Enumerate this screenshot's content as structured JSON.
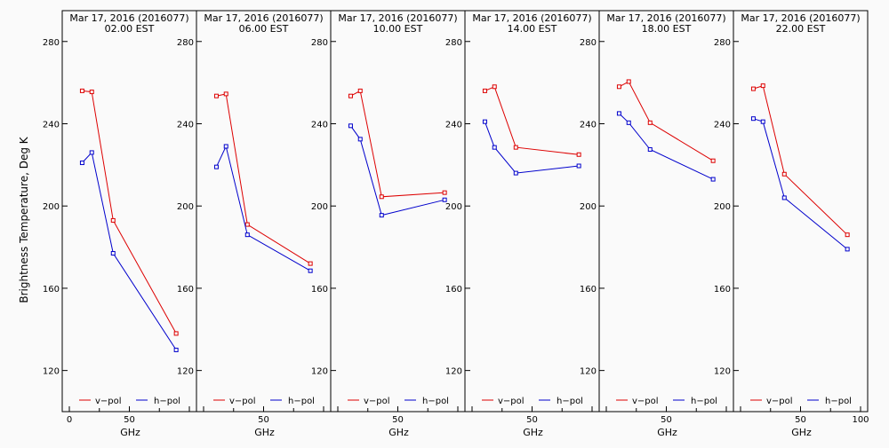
{
  "chart_data": {
    "type": "line",
    "ylabel": "Brightness Temperature, Deg K",
    "xlabel": "GHz",
    "xlim": [
      0,
      100
    ],
    "ylim": [
      100,
      295
    ],
    "y_ticks": [
      120,
      160,
      200,
      240,
      280
    ],
    "x_tick_labels": [
      "0",
      "50",
      "100"
    ],
    "x_tick_labels_small": [
      "25",
      "75"
    ],
    "colors": {
      "v-pol": "#dd0000",
      "h-pol": "#0000cc"
    },
    "legend_labels": [
      "v−pol",
      "h−pol"
    ],
    "grid": false,
    "panels": [
      {
        "title_line1": "Mar 17, 2016 (2016077)",
        "title_line2": "02.00 EST",
        "series": [
          {
            "name": "v−pol",
            "x": [
              10.7,
              18.7,
              36.5,
              89.0
            ],
            "y": [
              256,
              255.5,
              193,
              138
            ]
          },
          {
            "name": "h−pol",
            "x": [
              10.7,
              18.7,
              36.5,
              89.0
            ],
            "y": [
              221,
              226,
              177,
              130
            ]
          }
        ]
      },
      {
        "title_line1": "Mar 17, 2016 (2016077)",
        "title_line2": "06.00 EST",
        "series": [
          {
            "name": "v−pol",
            "x": [
              10.7,
              18.7,
              36.5,
              89.0
            ],
            "y": [
              253.5,
              254.5,
              191,
              172
            ]
          },
          {
            "name": "h−pol",
            "x": [
              10.7,
              18.7,
              36.5,
              89.0
            ],
            "y": [
              219,
              229,
              186,
              168.5
            ]
          }
        ]
      },
      {
        "title_line1": "Mar 17, 2016 (2016077)",
        "title_line2": "10.00 EST",
        "series": [
          {
            "name": "v−pol",
            "x": [
              10.7,
              18.7,
              36.5,
              89.0
            ],
            "y": [
              253.5,
              256,
              204.5,
              206.5
            ]
          },
          {
            "name": "h−pol",
            "x": [
              10.7,
              18.7,
              36.5,
              89.0
            ],
            "y": [
              239,
              232.5,
              195.5,
              203
            ]
          }
        ]
      },
      {
        "title_line1": "Mar 17, 2016 (2016077)",
        "title_line2": "14.00 EST",
        "series": [
          {
            "name": "v−pol",
            "x": [
              10.7,
              18.7,
              36.5,
              89.0
            ],
            "y": [
              256,
              258,
              228.5,
              225
            ]
          },
          {
            "name": "h−pol",
            "x": [
              10.7,
              18.7,
              36.5,
              89.0
            ],
            "y": [
              241,
              228.5,
              216,
              219.5
            ]
          }
        ]
      },
      {
        "title_line1": "Mar 17, 2016 (2016077)",
        "title_line2": "18.00 EST",
        "series": [
          {
            "name": "v−pol",
            "x": [
              10.7,
              18.7,
              36.5,
              89.0
            ],
            "y": [
              258,
              260.5,
              240.5,
              222
            ]
          },
          {
            "name": "h−pol",
            "x": [
              10.7,
              18.7,
              36.5,
              89.0
            ],
            "y": [
              245,
              240.5,
              227.5,
              213
            ]
          }
        ]
      },
      {
        "title_line1": "Mar 17, 2016 (2016077)",
        "title_line2": "22.00 EST",
        "series": [
          {
            "name": "v−pol",
            "x": [
              10.7,
              18.7,
              36.5,
              89.0
            ],
            "y": [
              257,
              258.5,
              215.5,
              186
            ]
          },
          {
            "name": "h−pol",
            "x": [
              10.7,
              18.7,
              36.5,
              89.0
            ],
            "y": [
              242.5,
              241,
              204,
              179
            ]
          }
        ]
      }
    ]
  }
}
